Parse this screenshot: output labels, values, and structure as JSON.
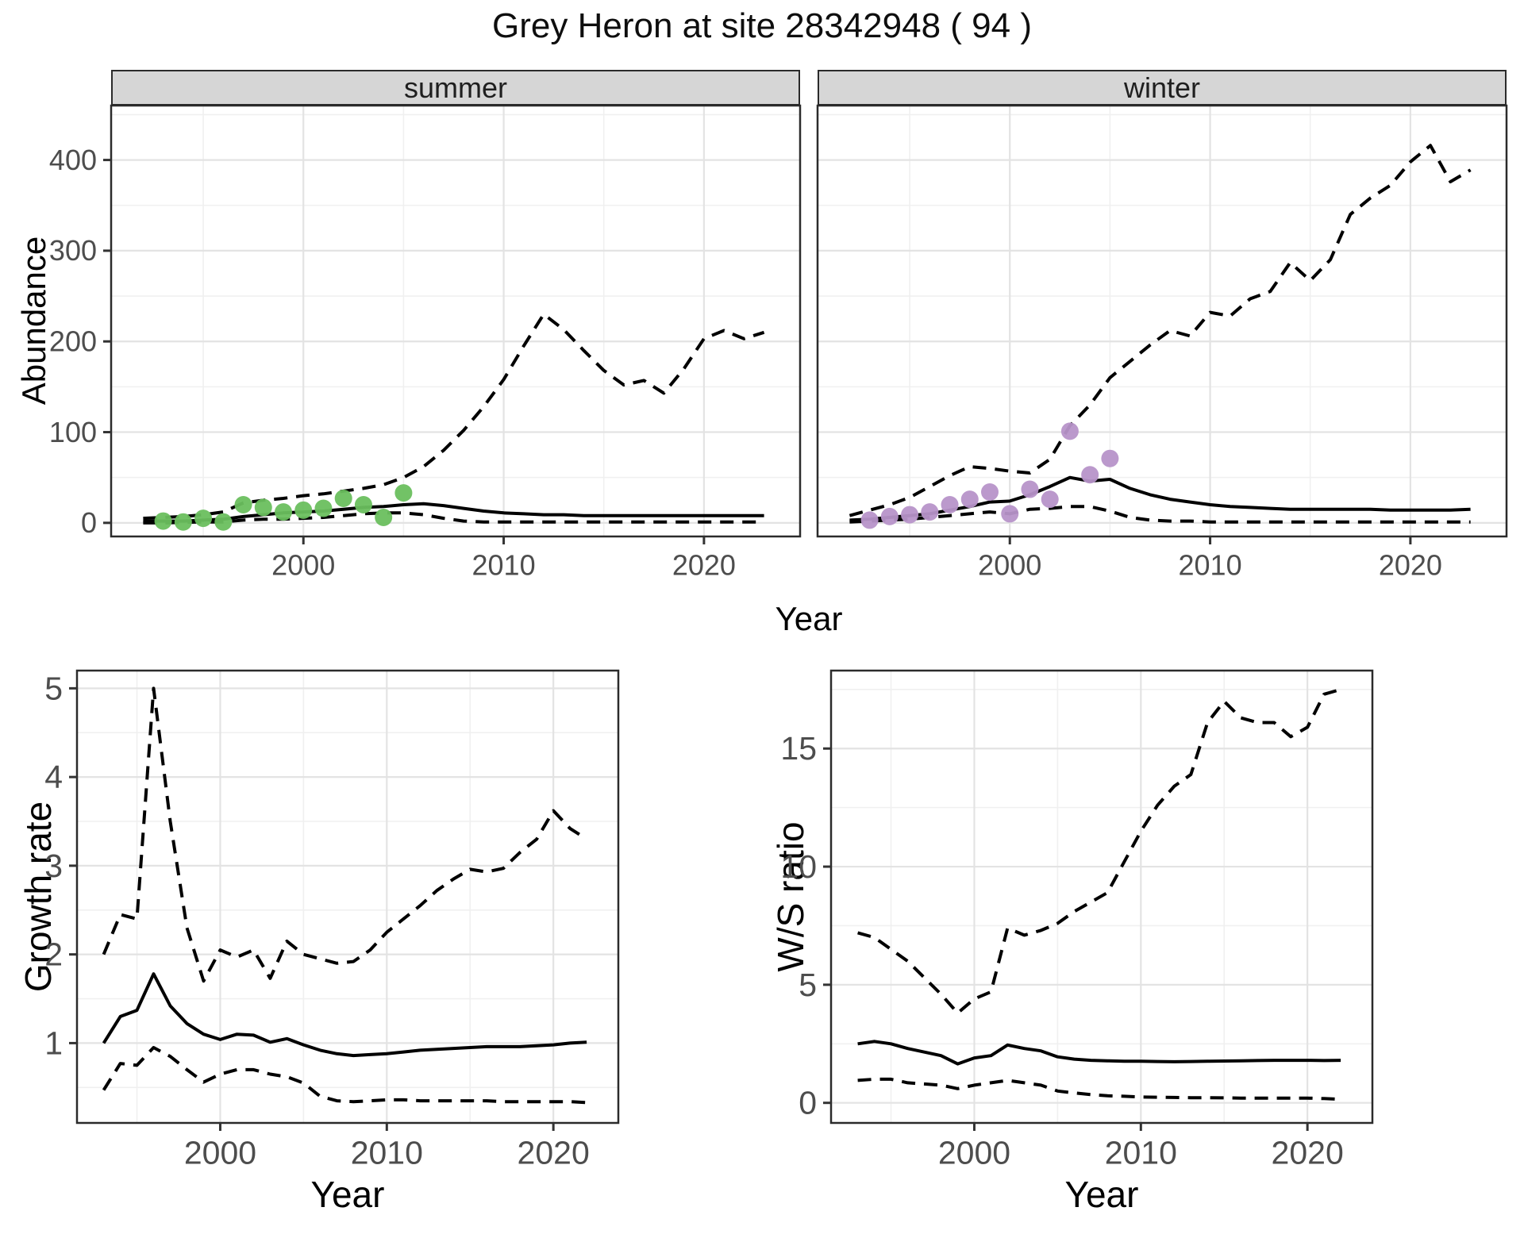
{
  "title": "Grey Heron at site 28342948 ( 94 )",
  "colors": {
    "summer_point": "#6abf5e",
    "winter_point": "#b794c9",
    "line": "#000000",
    "strip_bg": "#d6d6d6",
    "panel_border": "#2b2b2b",
    "grid_major": "#e3e3e3",
    "grid_minor": "#f0f0f0",
    "axis_text": "#4d4d4d",
    "tick_mark": "#333333"
  },
  "chart_data": [
    {
      "type": "line",
      "id": "abundance",
      "title": "Grey Heron at site 28342948 ( 94 )",
      "xlabel": "Year",
      "ylabel": "Abundance",
      "facets": [
        "summer",
        "winter"
      ],
      "legend": "none",
      "grid": true,
      "xlim": [
        1990.4,
        2024.8
      ],
      "ylim": [
        -15,
        460
      ],
      "x_ticks": [
        2000,
        2010,
        2020
      ],
      "x_minor": [
        1995,
        2005,
        2015
      ],
      "y_ticks": [
        0,
        100,
        200,
        300,
        400
      ],
      "y_minor": [
        50,
        150,
        250,
        350,
        450
      ],
      "years": [
        1992,
        1993,
        1994,
        1995,
        1996,
        1997,
        1998,
        1999,
        2000,
        2001,
        2002,
        2003,
        2004,
        2005,
        2006,
        2007,
        2008,
        2009,
        2010,
        2011,
        2012,
        2013,
        2014,
        2015,
        2016,
        2017,
        2018,
        2019,
        2020,
        2021,
        2022,
        2023
      ],
      "panels": [
        {
          "facet": "summer",
          "point_color": "#6abf5e",
          "median": [
            2,
            2,
            2,
            3,
            4,
            7,
            9,
            11,
            12,
            13,
            15,
            17,
            18,
            20,
            21,
            19,
            16,
            13,
            11,
            10,
            9,
            9,
            8,
            8,
            8,
            8,
            8,
            8,
            8,
            8,
            8,
            8
          ],
          "upper": [
            5,
            6,
            7,
            9,
            12,
            22,
            25,
            27,
            30,
            32,
            35,
            38,
            42,
            50,
            62,
            80,
            102,
            128,
            158,
            195,
            230,
            213,
            190,
            168,
            152,
            157,
            143,
            170,
            203,
            212,
            203,
            210
          ],
          "lower": [
            0,
            0,
            0.5,
            1,
            1,
            3,
            4,
            4,
            5,
            6,
            8,
            10,
            11,
            11,
            9,
            5,
            2,
            1,
            1,
            1,
            1,
            1,
            1,
            1,
            1,
            1,
            1,
            1,
            1,
            1,
            1,
            1
          ],
          "obs_years": [
            1993,
            1994,
            1995,
            1996,
            1997,
            1998,
            1999,
            2000,
            2001,
            2002,
            2003,
            2004,
            2005
          ],
          "obs": [
            2,
            1,
            5,
            1,
            20,
            17,
            12,
            14,
            16,
            27,
            20,
            6,
            33
          ]
        },
        {
          "facet": "winter",
          "point_color": "#b794c9",
          "median": [
            3,
            4,
            6,
            8,
            10,
            14,
            18,
            23,
            24,
            31,
            40,
            50,
            46,
            48,
            38,
            31,
            26,
            23,
            20,
            18,
            17,
            16,
            15,
            15,
            15,
            15,
            15,
            14,
            14,
            14,
            14,
            15
          ],
          "upper": [
            8,
            14,
            20,
            28,
            40,
            52,
            62,
            60,
            57,
            55,
            70,
            107,
            130,
            160,
            178,
            196,
            212,
            206,
            232,
            228,
            247,
            255,
            287,
            267,
            290,
            340,
            358,
            372,
            398,
            416,
            376,
            389
          ],
          "lower": [
            1,
            2,
            3,
            4,
            6,
            8,
            10,
            12,
            10,
            15,
            16,
            18,
            18,
            13,
            6,
            3,
            2,
            2,
            1,
            1,
            1,
            1,
            1,
            1,
            1,
            1,
            1,
            1,
            1,
            1,
            1,
            1
          ],
          "obs_years": [
            1993,
            1994,
            1995,
            1996,
            1997,
            1998,
            1999,
            2000,
            2001,
            2002,
            2003,
            2004,
            2005
          ],
          "obs": [
            3,
            7,
            9,
            12,
            20,
            26,
            34,
            10,
            37,
            26,
            101,
            53,
            71
          ]
        }
      ]
    },
    {
      "type": "line",
      "id": "growth_rate",
      "xlabel": "Year",
      "ylabel": "Growth rate",
      "legend": "none",
      "grid": true,
      "xlim": [
        1991.4,
        2023.9
      ],
      "ylim": [
        0.1,
        5.2
      ],
      "x_ticks": [
        2000,
        2010,
        2020
      ],
      "x_minor": [
        1995,
        2005,
        2015
      ],
      "y_ticks": [
        1,
        2,
        3,
        4,
        5
      ],
      "y_minor": [
        0.5,
        1.5,
        2.5,
        3.5,
        4.5
      ],
      "years": [
        1993,
        1994,
        1995,
        1996,
        1997,
        1998,
        1999,
        2000,
        2001,
        2002,
        2003,
        2004,
        2005,
        2006,
        2007,
        2008,
        2009,
        2010,
        2011,
        2012,
        2013,
        2014,
        2015,
        2016,
        2017,
        2018,
        2019,
        2020,
        2021,
        2022
      ],
      "median": [
        1.0,
        1.3,
        1.37,
        1.78,
        1.42,
        1.22,
        1.1,
        1.04,
        1.1,
        1.09,
        1.01,
        1.05,
        0.98,
        0.92,
        0.88,
        0.86,
        0.87,
        0.88,
        0.9,
        0.92,
        0.93,
        0.94,
        0.95,
        0.96,
        0.96,
        0.96,
        0.97,
        0.98,
        1.0,
        1.01
      ],
      "upper": [
        2.0,
        2.45,
        2.4,
        5.0,
        3.5,
        2.3,
        1.7,
        2.05,
        1.97,
        2.05,
        1.73,
        2.15,
        2.0,
        1.95,
        1.9,
        1.92,
        2.05,
        2.25,
        2.4,
        2.55,
        2.72,
        2.85,
        2.96,
        2.93,
        2.97,
        3.15,
        3.3,
        3.62,
        3.42,
        3.3
      ],
      "lower": [
        0.47,
        0.77,
        0.75,
        0.95,
        0.85,
        0.7,
        0.56,
        0.65,
        0.7,
        0.7,
        0.65,
        0.62,
        0.55,
        0.4,
        0.35,
        0.34,
        0.35,
        0.36,
        0.36,
        0.35,
        0.35,
        0.35,
        0.35,
        0.35,
        0.34,
        0.34,
        0.34,
        0.34,
        0.34,
        0.33
      ]
    },
    {
      "type": "line",
      "id": "ws_ratio",
      "xlabel": "Year",
      "ylabel": "W/S ratio",
      "legend": "none",
      "grid": true,
      "xlim": [
        1991.4,
        2023.9
      ],
      "ylim": [
        -0.85,
        18.3
      ],
      "x_ticks": [
        2000,
        2010,
        2020
      ],
      "x_minor": [
        1995,
        2005,
        2015
      ],
      "y_ticks": [
        0,
        5,
        10,
        15
      ],
      "y_minor": [
        2.5,
        7.5,
        12.5,
        17.5
      ],
      "years": [
        1993,
        1994,
        1995,
        1996,
        1997,
        1998,
        1999,
        2000,
        2001,
        2002,
        2003,
        2004,
        2005,
        2006,
        2007,
        2008,
        2009,
        2010,
        2011,
        2012,
        2013,
        2014,
        2015,
        2016,
        2017,
        2018,
        2019,
        2020,
        2021,
        2022
      ],
      "median": [
        2.5,
        2.6,
        2.5,
        2.3,
        2.15,
        2.0,
        1.65,
        1.9,
        2.0,
        2.45,
        2.3,
        2.2,
        1.95,
        1.85,
        1.8,
        1.78,
        1.76,
        1.76,
        1.75,
        1.74,
        1.75,
        1.76,
        1.77,
        1.78,
        1.79,
        1.8,
        1.8,
        1.8,
        1.79,
        1.8
      ],
      "upper": [
        7.2,
        7.0,
        6.5,
        6.0,
        5.3,
        4.6,
        3.8,
        4.4,
        4.7,
        7.4,
        7.1,
        7.3,
        7.6,
        8.1,
        8.5,
        8.9,
        10.2,
        11.5,
        12.6,
        13.4,
        13.9,
        16.1,
        17.0,
        16.3,
        16.1,
        16.1,
        15.5,
        15.9,
        17.3,
        17.5
      ],
      "lower": [
        0.95,
        1.0,
        1.0,
        0.85,
        0.8,
        0.75,
        0.6,
        0.75,
        0.85,
        0.95,
        0.85,
        0.75,
        0.5,
        0.42,
        0.35,
        0.3,
        0.28,
        0.25,
        0.24,
        0.23,
        0.22,
        0.22,
        0.21,
        0.2,
        0.2,
        0.2,
        0.2,
        0.2,
        0.18,
        0.15
      ]
    }
  ]
}
